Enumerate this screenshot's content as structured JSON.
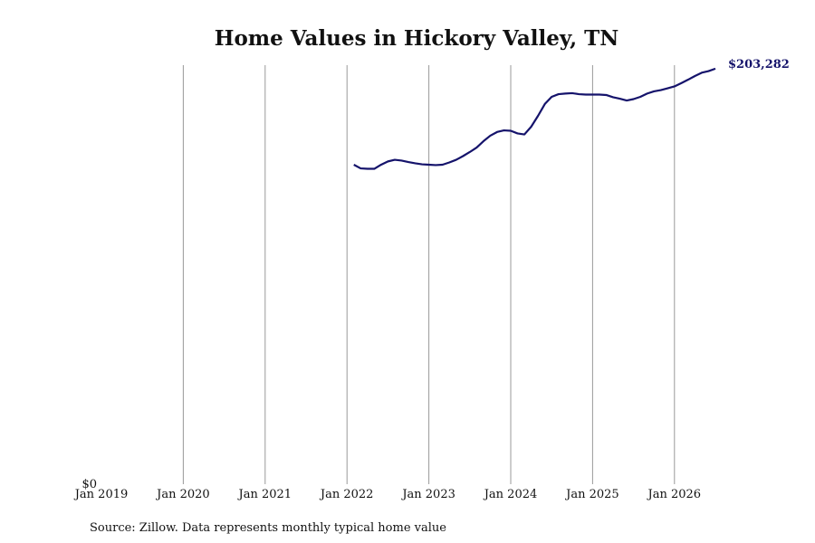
{
  "chart_data": {
    "type": "line",
    "title": "Home Values in Hickory Valley, TN",
    "source": "Source: Zillow. Data represents monthly typical home value",
    "x": [
      "2022-02",
      "2022-03",
      "2022-04",
      "2022-05",
      "2022-06",
      "2022-07",
      "2022-08",
      "2022-09",
      "2022-10",
      "2022-11",
      "2022-12",
      "2023-01",
      "2023-02",
      "2023-03",
      "2023-04",
      "2023-05",
      "2023-06",
      "2023-07",
      "2023-08",
      "2023-09",
      "2023-10",
      "2023-11",
      "2023-12",
      "2024-01",
      "2024-02",
      "2024-03",
      "2024-04",
      "2024-05",
      "2024-06",
      "2024-07",
      "2024-08",
      "2024-09",
      "2024-10",
      "2024-11",
      "2024-12",
      "2025-01",
      "2025-02",
      "2025-03",
      "2025-04",
      "2025-05",
      "2025-06",
      "2025-07",
      "2025-08",
      "2025-09",
      "2025-10",
      "2025-11",
      "2025-12",
      "2026-01",
      "2026-02",
      "2026-03",
      "2026-04",
      "2026-05",
      "2026-06",
      "2026-07"
    ],
    "series": [
      {
        "name": "Typical home value",
        "color": "#15136b",
        "values": [
          156300,
          154500,
          154300,
          154300,
          156300,
          157900,
          158700,
          158300,
          157600,
          157000,
          156500,
          156300,
          156100,
          156300,
          157400,
          158700,
          160500,
          162500,
          164700,
          167800,
          170500,
          172300,
          173100,
          172900,
          171600,
          171100,
          174900,
          180200,
          186000,
          189500,
          190800,
          191100,
          191300,
          190800,
          190600,
          190600,
          190600,
          190400,
          189300,
          188600,
          187700,
          188400,
          189500,
          191100,
          192200,
          192800,
          193700,
          194600,
          196200,
          197900,
          199700,
          201300,
          202100,
          203282
        ],
        "value_labels": [
          null,
          null,
          null,
          null,
          null,
          null,
          null,
          null,
          null,
          null,
          null,
          null,
          null,
          null,
          null,
          null,
          null,
          null,
          null,
          null,
          null,
          null,
          null,
          null,
          null,
          null,
          null,
          null,
          null,
          null,
          null,
          null,
          null,
          null,
          null,
          null,
          null,
          null,
          null,
          null,
          null,
          null,
          null,
          null,
          null,
          null,
          null,
          null,
          null,
          null,
          null,
          null,
          null,
          "$203,282"
        ]
      }
    ],
    "xlim": [
      "2019-01",
      "2026-07"
    ],
    "xticks": [
      {
        "value": "2019-01",
        "label": "Jan 2019"
      },
      {
        "value": "2020-01",
        "label": "Jan 2020"
      },
      {
        "value": "2021-01",
        "label": "Jan 2021"
      },
      {
        "value": "2022-01",
        "label": "Jan 2022"
      },
      {
        "value": "2023-01",
        "label": "Jan 2023"
      },
      {
        "value": "2024-01",
        "label": "Jan 2024"
      },
      {
        "value": "2025-01",
        "label": "Jan 2025"
      },
      {
        "value": "2026-01",
        "label": "Jan 2026"
      }
    ],
    "ylim": [
      0,
      205000
    ],
    "yticks": [
      {
        "value": 0,
        "label": "$0"
      }
    ],
    "grid": true
  }
}
